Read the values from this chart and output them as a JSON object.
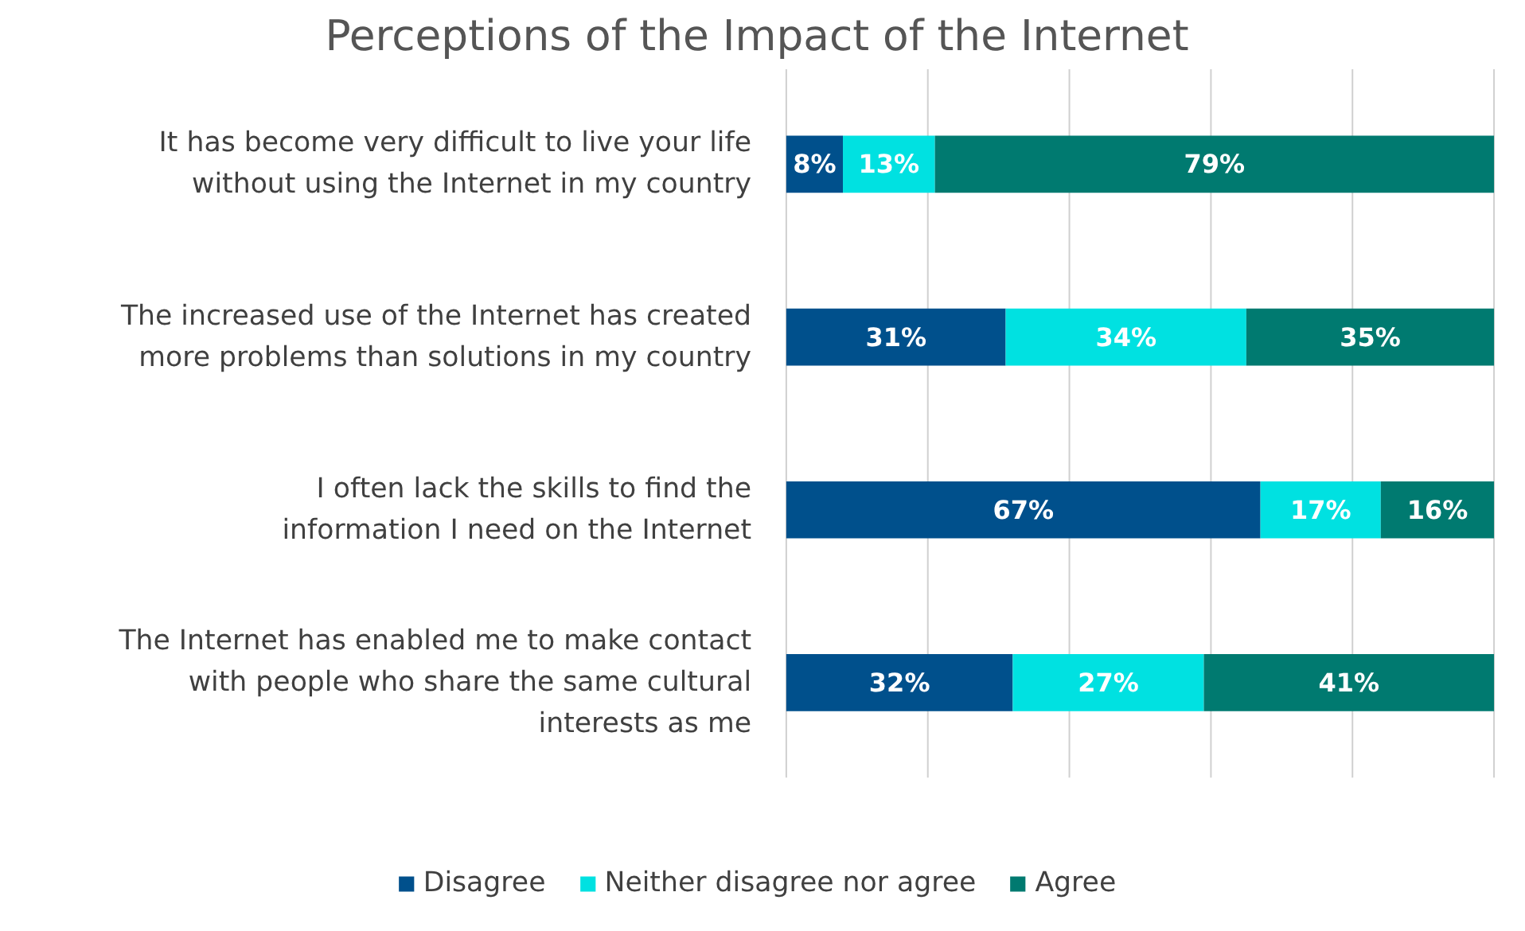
{
  "chart_data": {
    "type": "bar",
    "orientation": "horizontal",
    "stacked": true,
    "title": "Perceptions of the Impact of the Internet",
    "categories": [
      "It has become very difficult to live your life without using the Internet in my country",
      "The increased use of the Internet has created more problems than solutions in my country",
      "I often lack the skills to find the information I need on the Internet",
      "The Internet has enabled me to make contact with people who share the same cultural interests as me"
    ],
    "series": [
      {
        "name": "Disagree",
        "color": "#00508c",
        "values": [
          8,
          31,
          67,
          32
        ],
        "value_labels": [
          "8%",
          "31%",
          "67%",
          "32%"
        ]
      },
      {
        "name": "Neither disagree nor agree",
        "color": "#00e1e1",
        "values": [
          13,
          34,
          17,
          27
        ],
        "value_labels": [
          "13%",
          "34%",
          "17%",
          "27%"
        ]
      },
      {
        "name": "Agree",
        "color": "#007a70",
        "values": [
          79,
          35,
          16,
          41
        ],
        "value_labels": [
          "79%",
          "35%",
          "16%",
          "41%"
        ]
      }
    ],
    "grid": "x",
    "legend": "bottom",
    "tick_labels": "y"
  }
}
